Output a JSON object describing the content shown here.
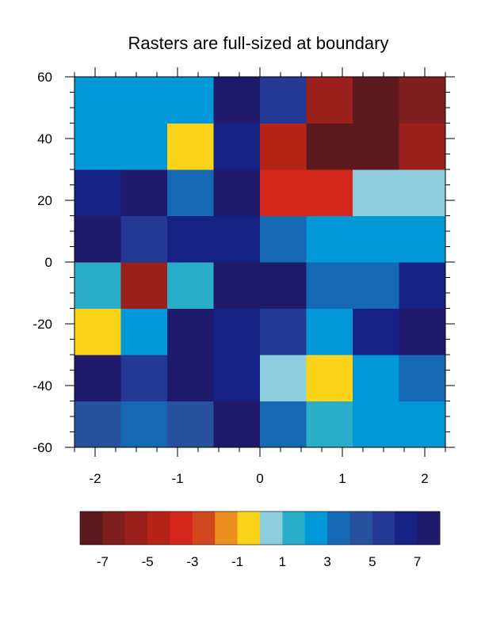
{
  "chart_data": {
    "type": "heatmap",
    "title": "Rasters are full-sized at boundary",
    "xlabel": "",
    "ylabel": "",
    "x_centers": [
      -2.0,
      -1.43,
      -0.86,
      -0.29,
      0.29,
      0.86,
      1.43,
      2.0
    ],
    "y_centers": [
      -55,
      -40,
      -25,
      -10,
      5,
      20,
      35,
      50
    ],
    "xlim": [
      -2.25,
      2.25
    ],
    "ylim": [
      -60,
      60
    ],
    "x_ticks": [
      -2,
      -1,
      0,
      1,
      2
    ],
    "x_tick_labels": [
      "-2",
      "-1",
      "0",
      "1",
      "2"
    ],
    "y_ticks": [
      -60,
      -40,
      -20,
      0,
      20,
      40,
      60
    ],
    "y_tick_labels": [
      "-60",
      "-40",
      "-20",
      "0",
      "20",
      "40",
      "60"
    ],
    "values_bottom_to_top": [
      [
        4,
        3,
        4,
        7,
        3,
        1,
        2,
        2
      ],
      [
        7,
        5,
        7,
        6,
        0,
        -1,
        2,
        3
      ],
      [
        -1,
        2,
        8,
        6,
        5,
        2,
        6,
        8
      ],
      [
        1,
        -6,
        1,
        7,
        8,
        3,
        3,
        6
      ],
      [
        7,
        5,
        6,
        6,
        3,
        2,
        2,
        2
      ],
      [
        6,
        8,
        3,
        7,
        -4,
        -4,
        0,
        0
      ],
      [
        2,
        2,
        -1,
        6,
        -5,
        -8,
        -8,
        -6
      ],
      [
        2,
        2,
        2,
        7,
        5,
        -6,
        -8,
        -7
      ]
    ],
    "colorbar": {
      "levels": [
        -8,
        -7,
        -6,
        -5,
        -4,
        -3,
        -2,
        -1,
        0,
        1,
        2,
        3,
        4,
        5,
        6,
        7,
        8
      ],
      "colors": [
        "#5c1a1e",
        "#7e1e1e",
        "#9b1f1a",
        "#b62418",
        "#d2271a",
        "#d2481e",
        "#eb8f1e",
        "#fbd319",
        "#8ccede",
        "#29adc8",
        "#0297d6",
        "#1568b4",
        "#2851a0",
        "#233994",
        "#162184",
        "#1f1a6c"
      ],
      "tick_values": [
        -7,
        -5,
        -3,
        -1,
        1,
        3,
        5,
        7
      ],
      "tick_labels": [
        "-7",
        "-5",
        "-3",
        "-1",
        "1",
        "3",
        "5",
        "7"
      ]
    }
  }
}
